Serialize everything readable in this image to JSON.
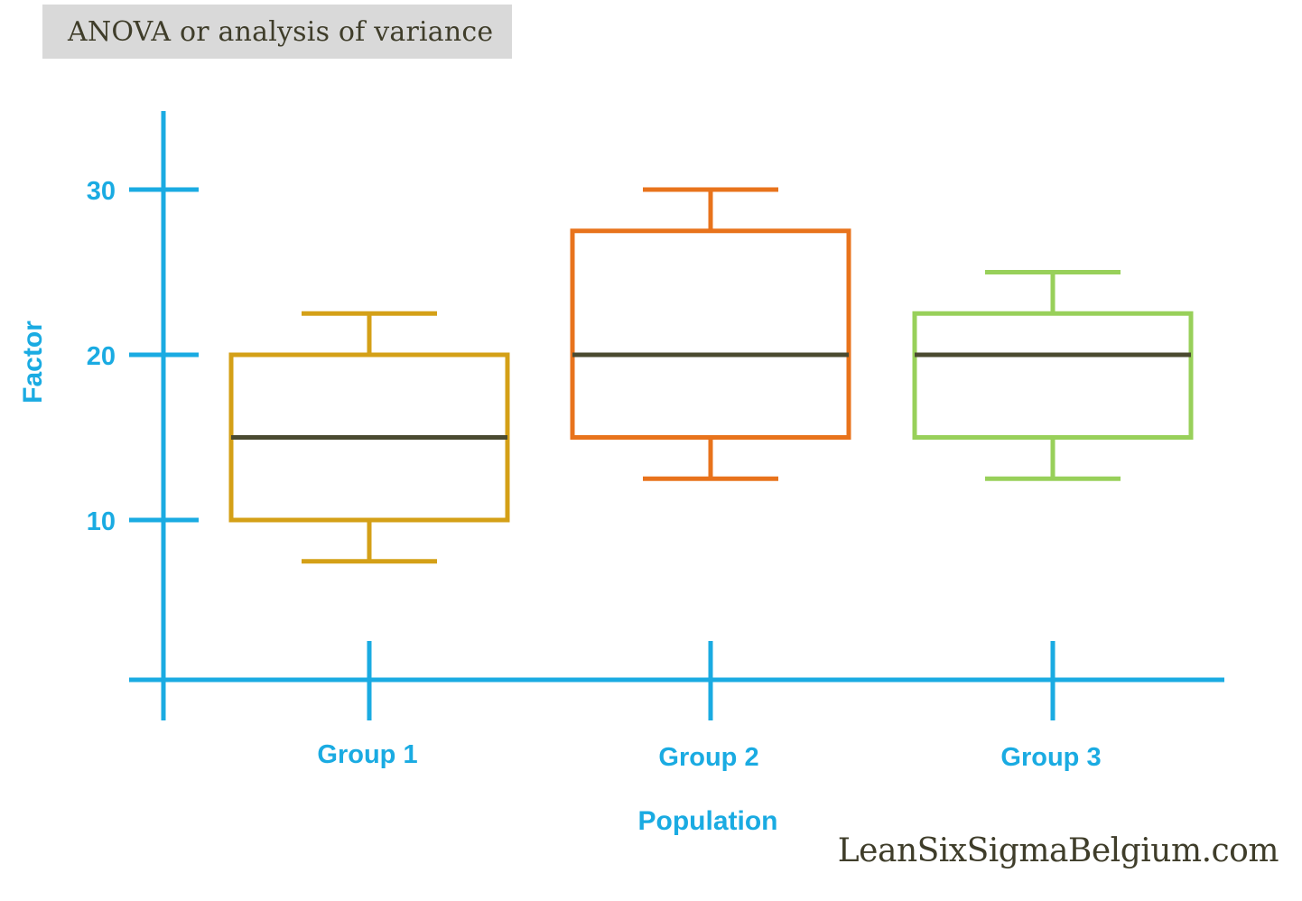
{
  "header": {
    "title": "ANOVA or analysis of variance"
  },
  "footer": {
    "watermark": "LeanSixSigmaBelgium.com"
  },
  "colors": {
    "axis": "#1aabe2",
    "median": "#4a4a30",
    "title_box": "#d9d9d9",
    "text_dark": "#3f3d2a"
  },
  "chart_data": {
    "type": "boxplot",
    "title": "",
    "xlabel": "Population",
    "ylabel": "Factor",
    "y_ticks": [
      10,
      20,
      30
    ],
    "ylim": [
      0,
      35
    ],
    "grid": false,
    "legend": "none",
    "categories": [
      "Group 1",
      "Group 2",
      "Group 3"
    ],
    "series": [
      {
        "category": "Group 1",
        "color": "#d4a017",
        "min": 7.5,
        "q1": 10,
        "median": 15,
        "q3": 20,
        "max": 22.5
      },
      {
        "category": "Group 2",
        "color": "#e8731c",
        "min": 12.5,
        "q1": 15,
        "median": 20,
        "q3": 27.5,
        "max": 30
      },
      {
        "category": "Group 3",
        "color": "#98d05a",
        "min": 12.5,
        "q1": 15,
        "median": 20,
        "q3": 22.5,
        "max": 25
      }
    ]
  }
}
